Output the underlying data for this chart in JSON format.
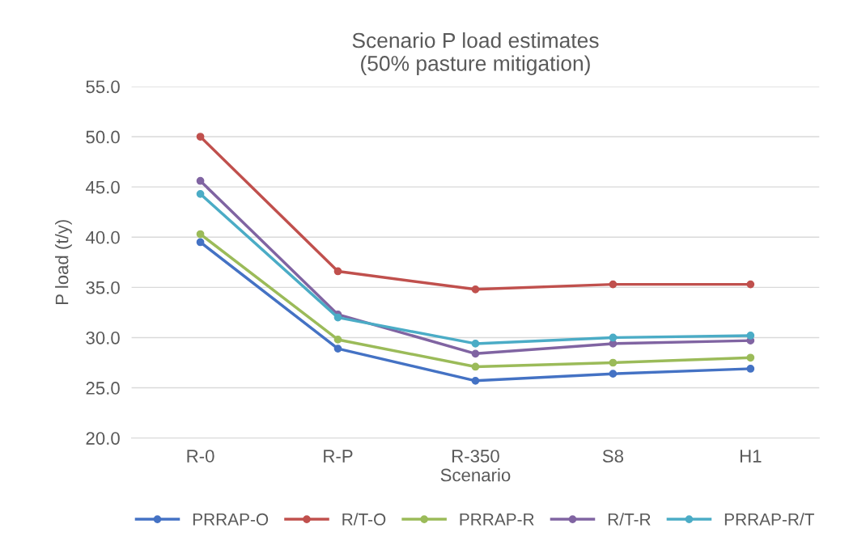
{
  "chart_data": {
    "type": "line",
    "title": "Scenario P load estimates\n(50% pasture mitigation)",
    "xlabel": "Scenario",
    "ylabel": "P load (t/y)",
    "categories": [
      "R-0",
      "R-P",
      "R-350",
      "S8",
      "H1"
    ],
    "series": [
      {
        "name": "PRRAP-O",
        "color": "#4472c4",
        "values": [
          39.5,
          28.9,
          25.7,
          26.4,
          26.9
        ]
      },
      {
        "name": "R/T-O",
        "color": "#c0504d",
        "values": [
          50.0,
          36.6,
          34.8,
          35.3,
          35.3
        ]
      },
      {
        "name": "PRRAP-R",
        "color": "#9bbb59",
        "values": [
          40.3,
          29.8,
          27.1,
          27.5,
          28.0
        ]
      },
      {
        "name": "R/T-R",
        "color": "#8064a2",
        "values": [
          45.6,
          32.3,
          28.4,
          29.4,
          29.7
        ]
      },
      {
        "name": "PRRAP-R/T",
        "color": "#4bacc6",
        "values": [
          44.3,
          32.0,
          29.4,
          30.0,
          30.2
        ]
      }
    ],
    "ylim": [
      20,
      55
    ],
    "yticks": [
      {
        "value": 20,
        "label": "20.0"
      },
      {
        "value": 25,
        "label": "25.0"
      },
      {
        "value": 30,
        "label": "30.0"
      },
      {
        "value": 35,
        "label": "35.0"
      },
      {
        "value": 40,
        "label": "40.0"
      },
      {
        "value": 45,
        "label": "45.0"
      },
      {
        "value": 50,
        "label": "50.0"
      },
      {
        "value": 55,
        "label": "55.0"
      }
    ],
    "grid": "y",
    "legend": "bottom",
    "marker": "circle",
    "line_style": "solid"
  }
}
